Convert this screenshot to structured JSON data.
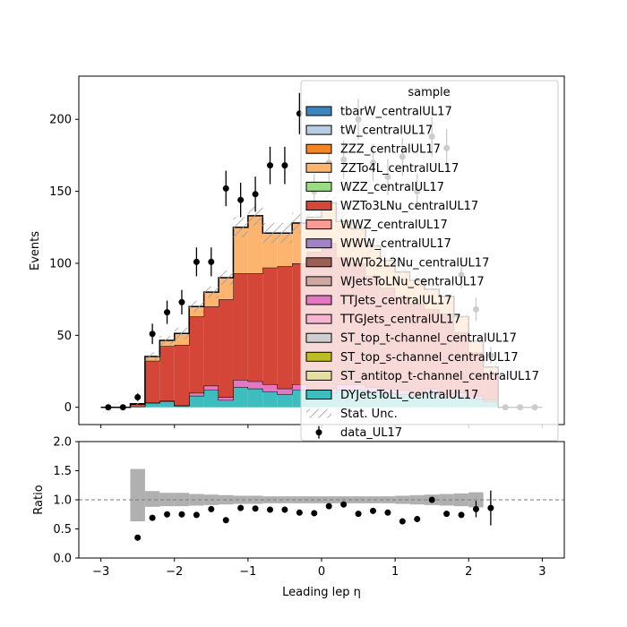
{
  "chart_data": [
    {
      "type": "stacked-histogram",
      "ylabel": "Events",
      "ylim": [
        -12,
        230
      ],
      "xlim": [
        -3.3,
        3.3
      ],
      "yticks": [
        0,
        50,
        100,
        150,
        200
      ],
      "ytick_labels": [
        "0",
        "50",
        "100",
        "150",
        "200"
      ],
      "bin_edges": [
        -3.0,
        -2.8,
        -2.6,
        -2.4,
        -2.2,
        -2.0,
        -1.8,
        -1.6,
        -1.4,
        -1.2,
        -1.0,
        -0.8,
        -0.6,
        -0.4,
        -0.2,
        0.0,
        0.2,
        0.4,
        0.6,
        0.8,
        1.0,
        1.2,
        1.4,
        1.6,
        1.8,
        2.0,
        2.2,
        2.4,
        2.6,
        2.8,
        3.0
      ],
      "stack_order_bottom_to_top": [
        "DYJetsToLL_centralUL17",
        "TTJets_centralUL17",
        "WZTo3LNu_centralUL17",
        "ZZTo4L_centralUL17"
      ],
      "series": [
        {
          "name": "DYJetsToLL_centralUL17",
          "color": "#3dbdbd",
          "values": [
            0,
            0,
            0.5,
            3,
            4,
            1,
            8,
            12,
            5,
            14,
            13,
            11,
            9,
            12,
            8,
            10,
            12,
            12,
            11,
            10,
            9,
            8,
            10,
            7,
            8,
            6,
            4,
            0,
            0,
            0
          ]
        },
        {
          "name": "TTJets_centralUL17",
          "color": "#e377c2",
          "values": [
            0,
            0,
            0,
            0.3,
            0.5,
            0.3,
            2,
            3,
            2,
            5,
            5,
            5,
            4,
            4,
            3,
            3,
            4,
            4,
            3,
            3,
            3,
            2,
            3,
            2,
            2,
            2,
            1,
            0,
            0,
            0
          ]
        },
        {
          "name": "WZTo3LNu_centralUL17",
          "color": "#d44637",
          "values": [
            0,
            0,
            1.5,
            29,
            38,
            42,
            53,
            55,
            68,
            74,
            75,
            81,
            85,
            84,
            97,
            101,
            88,
            84,
            77,
            70,
            65,
            62,
            55,
            56,
            42,
            30,
            18,
            0,
            0,
            0
          ]
        },
        {
          "name": "ZZTo4L_centralUL17",
          "color": "#fdb46f",
          "values": [
            0,
            0,
            0.5,
            3,
            4,
            8,
            7,
            10,
            15,
            32,
            40,
            24,
            23,
            28,
            24,
            28,
            25,
            24,
            21,
            19,
            17,
            16,
            14,
            12,
            11,
            8,
            5,
            0,
            0,
            0
          ]
        }
      ],
      "stat_unc_half_width": [
        0,
        0,
        0.7,
        3,
        3,
        4,
        4,
        4,
        5,
        7,
        7,
        7,
        7,
        7,
        7,
        8,
        7,
        7,
        6,
        6,
        6,
        6,
        5,
        5,
        5,
        4,
        3,
        0,
        0,
        0
      ],
      "data": {
        "name": "data_UL17",
        "x": [
          -2.9,
          -2.7,
          -2.5,
          -2.3,
          -2.1,
          -1.9,
          -1.7,
          -1.5,
          -1.3,
          -1.1,
          -0.9,
          -0.7,
          -0.5,
          -0.3,
          -0.1,
          0.1,
          0.3,
          0.5,
          0.7,
          0.9,
          1.1,
          1.3,
          1.5,
          1.7,
          1.9,
          2.1,
          2.3,
          2.5,
          2.7,
          2.9
        ],
        "y": [
          0,
          0,
          7,
          51,
          66,
          73,
          101,
          101,
          152,
          144,
          148,
          168,
          168,
          204,
          150,
          170,
          172,
          200,
          170,
          160,
          174,
          150,
          188,
          180,
          92,
          68,
          36,
          0,
          0,
          0
        ],
        "err": [
          0,
          0,
          2.6,
          7.1,
          8.1,
          8.5,
          10,
          10,
          12.3,
          12,
          12.2,
          13,
          13,
          14.3,
          12.2,
          13,
          13.1,
          14.1,
          13,
          12.6,
          13.2,
          12.2,
          13.7,
          13.4,
          9.6,
          8.2,
          6,
          0,
          0,
          0
        ]
      },
      "legend": {
        "title": "sample",
        "placement": "upper-right",
        "entries": [
          {
            "label": "tbarW_centralUL17",
            "color": "#3e84bd",
            "kind": "patch"
          },
          {
            "label": "tW_centralUL17",
            "color": "#b7cde6",
            "kind": "patch"
          },
          {
            "label": "ZZZ_centralUL17",
            "color": "#f58426",
            "kind": "patch"
          },
          {
            "label": "ZZTo4L_centralUL17",
            "color": "#fdb46f",
            "kind": "patch"
          },
          {
            "label": "WZZ_centralUL17",
            "color": "#9bdb86",
            "kind": "patch"
          },
          {
            "label": "WZTo3LNu_centralUL17",
            "color": "#d44637",
            "kind": "patch"
          },
          {
            "label": "WWZ_centralUL17",
            "color": "#fb9b98",
            "kind": "patch"
          },
          {
            "label": "WWW_centralUL17",
            "color": "#a282c6",
            "kind": "patch"
          },
          {
            "label": "WWTo2L2Nu_centralUL17",
            "color": "#9b5f53",
            "kind": "patch"
          },
          {
            "label": "WJetsToLNu_centralUL17",
            "color": "#cfa7a1",
            "kind": "patch"
          },
          {
            "label": "TTJets_centralUL17",
            "color": "#e377c2",
            "kind": "patch"
          },
          {
            "label": "TTGJets_centralUL17",
            "color": "#f6b6d2",
            "kind": "patch"
          },
          {
            "label": "ST_top_t-channel_centralUL17",
            "color": "#cfcfcf",
            "kind": "patch"
          },
          {
            "label": "ST_top_s-channel_centralUL17",
            "color": "#bcbd22",
            "kind": "patch"
          },
          {
            "label": "ST_antitop_t-channel_centralUL17",
            "color": "#e6e0a0",
            "kind": "patch"
          },
          {
            "label": "DYJetsToLL_centralUL17",
            "color": "#3dbdbd",
            "kind": "patch"
          },
          {
            "label": "Stat. Unc.",
            "color": "#9a9a9a",
            "kind": "hatch"
          },
          {
            "label": "data_UL17",
            "color": "#000000",
            "kind": "marker"
          }
        ]
      }
    },
    {
      "type": "ratio",
      "xlabel": "Leading lep η",
      "ylabel": "Ratio",
      "ylim": [
        0.0,
        2.0
      ],
      "xlim": [
        -3.3,
        3.3
      ],
      "yticks": [
        0.0,
        0.5,
        1.0,
        1.5,
        2.0
      ],
      "ytick_labels": [
        "0.0",
        "0.5",
        "1.0",
        "1.5",
        "2.0"
      ],
      "xticks": [
        -3,
        -2,
        -1,
        0,
        1,
        2,
        3
      ],
      "xtick_labels": [
        "−3",
        "−2",
        "−1",
        "0",
        "1",
        "2",
        "3"
      ],
      "reference_line": 1.0,
      "unc_band": [
        {
          "x0": -2.6,
          "x1": -2.4,
          "lo": 0.63,
          "hi": 1.53
        },
        {
          "x0": -2.4,
          "x1": -2.2,
          "lo": 0.88,
          "hi": 1.15
        },
        {
          "x0": -2.2,
          "x1": -2.0,
          "lo": 0.89,
          "hi": 1.12
        },
        {
          "x0": -2.0,
          "x1": -1.8,
          "lo": 0.89,
          "hi": 1.12
        },
        {
          "x0": -1.8,
          "x1": -1.6,
          "lo": 0.9,
          "hi": 1.1
        },
        {
          "x0": -1.6,
          "x1": -1.4,
          "lo": 0.91,
          "hi": 1.09
        },
        {
          "x0": -1.4,
          "x1": -1.2,
          "lo": 0.92,
          "hi": 1.08
        },
        {
          "x0": -1.2,
          "x1": -1.0,
          "lo": 0.93,
          "hi": 1.07
        },
        {
          "x0": -1.0,
          "x1": -0.8,
          "lo": 0.93,
          "hi": 1.07
        },
        {
          "x0": -0.8,
          "x1": -0.6,
          "lo": 0.94,
          "hi": 1.06
        },
        {
          "x0": -0.6,
          "x1": -0.4,
          "lo": 0.94,
          "hi": 1.06
        },
        {
          "x0": -0.4,
          "x1": -0.2,
          "lo": 0.94,
          "hi": 1.06
        },
        {
          "x0": -0.2,
          "x1": 0.0,
          "lo": 0.94,
          "hi": 1.06
        },
        {
          "x0": 0.0,
          "x1": 0.2,
          "lo": 0.94,
          "hi": 1.06
        },
        {
          "x0": 0.2,
          "x1": 0.4,
          "lo": 0.94,
          "hi": 1.06
        },
        {
          "x0": 0.4,
          "x1": 0.6,
          "lo": 0.94,
          "hi": 1.06
        },
        {
          "x0": 0.6,
          "x1": 0.8,
          "lo": 0.94,
          "hi": 1.06
        },
        {
          "x0": 0.8,
          "x1": 1.0,
          "lo": 0.94,
          "hi": 1.06
        },
        {
          "x0": 1.0,
          "x1": 1.2,
          "lo": 0.93,
          "hi": 1.07
        },
        {
          "x0": 1.2,
          "x1": 1.4,
          "lo": 0.92,
          "hi": 1.08
        },
        {
          "x0": 1.4,
          "x1": 1.6,
          "lo": 0.91,
          "hi": 1.09
        },
        {
          "x0": 1.6,
          "x1": 1.8,
          "lo": 0.9,
          "hi": 1.1
        },
        {
          "x0": 1.8,
          "x1": 2.0,
          "lo": 0.89,
          "hi": 1.11
        },
        {
          "x0": 2.0,
          "x1": 2.2,
          "lo": 0.87,
          "hi": 1.13
        }
      ],
      "points": {
        "x": [
          -2.5,
          -2.3,
          -2.1,
          -1.9,
          -1.7,
          -1.5,
          -1.3,
          -1.1,
          -0.9,
          -0.7,
          -0.5,
          -0.3,
          -0.1,
          0.1,
          0.3,
          0.5,
          0.7,
          0.9,
          1.1,
          1.3,
          1.5,
          1.7,
          1.9,
          2.1,
          2.3
        ],
        "y": [
          0.35,
          0.69,
          0.75,
          0.75,
          0.74,
          0.84,
          0.65,
          0.86,
          0.85,
          0.83,
          0.83,
          0.78,
          0.77,
          0.89,
          0.92,
          0.76,
          0.81,
          0.78,
          0.63,
          0.67,
          1.0,
          0.76,
          0.74,
          0.84,
          0.86
        ],
        "err": [
          0.05,
          0.05,
          0.05,
          0.05,
          0.05,
          0.05,
          0.05,
          0.05,
          0.05,
          0.05,
          0.05,
          0.05,
          0.05,
          0.05,
          0.05,
          0.05,
          0.05,
          0.05,
          0.05,
          0.05,
          0.05,
          0.05,
          0.05,
          0.14,
          0.3
        ]
      }
    }
  ]
}
